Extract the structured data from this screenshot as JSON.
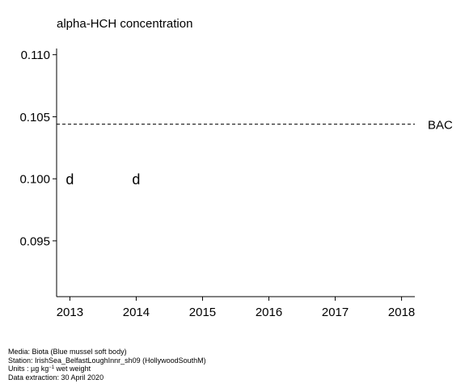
{
  "chart_data": {
    "type": "scatter",
    "title": "alpha-HCH concentration",
    "xlabel": "",
    "ylabel": "",
    "x_ticks": [
      "2013",
      "2014",
      "2015",
      "2016",
      "2017",
      "2018"
    ],
    "y_ticks": [
      "0.095",
      "0.100",
      "0.105",
      "0.110"
    ],
    "xlim": [
      2012.8,
      2018.2
    ],
    "ylim": [
      0.0905,
      0.1105
    ],
    "grid": false,
    "points": [
      {
        "x": 2013,
        "y": 0.1,
        "marker": "d"
      },
      {
        "x": 2014,
        "y": 0.1,
        "marker": "d"
      }
    ],
    "reference_lines": [
      {
        "label": "BAC",
        "y": 0.1044,
        "style": "dashed"
      }
    ]
  },
  "footer": {
    "media": "Media: Biota (Blue mussel soft body)",
    "station": "Station: IrishSea_BelfastLoughInnr_sh09 (HollywoodSouthM)",
    "units_prefix": "Units :  µg kg",
    "units_exponent": "−1",
    "units_suffix": " wet weight",
    "extraction": "Data extraction: 30 April 2020"
  }
}
